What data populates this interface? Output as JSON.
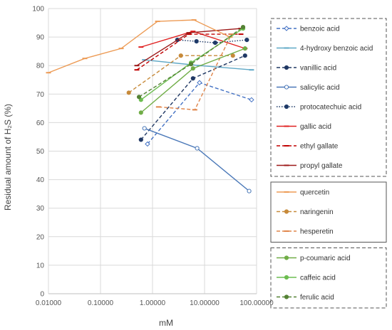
{
  "chart_data": {
    "type": "line",
    "title": "",
    "xlabel": "mM",
    "ylabel": "Residual amount of H₂S  (%)",
    "x_scale": "log",
    "xlim": [
      0.01,
      100
    ],
    "ylim": [
      0,
      100
    ],
    "x_ticks": [
      "0.01000",
      "0.10000",
      "1.00000",
      "10.00000",
      "100.00000"
    ],
    "y_ticks": [
      "0",
      "10",
      "20",
      "30",
      "40",
      "50",
      "60",
      "70",
      "80",
      "90",
      "100"
    ],
    "grid": true,
    "legend_position": "right",
    "legend_groups": [
      {
        "border": "dashed",
        "series": [
          "benzoic acid",
          "4-hydroxy benzoic acid",
          "vanillic acid",
          "salicylic acid",
          "protocatechuic acid",
          "gallic acid",
          "ethyl gallate",
          "propyl gallate"
        ]
      },
      {
        "border": "solid",
        "series": [
          "quercetin",
          "naringenin",
          "hesperetin"
        ]
      },
      {
        "border": "dashed",
        "series": [
          "p-coumaric acid",
          "caffeic acid",
          "ferulic acid"
        ]
      }
    ],
    "series": [
      {
        "name": "benzoic acid",
        "color": "#4472c4",
        "dash": "5,3",
        "marker": "diamond-open",
        "points": [
          [
            0.8,
            52.5
          ],
          [
            8.0,
            74
          ],
          [
            80.0,
            68
          ]
        ]
      },
      {
        "name": "4-hydroxy benzoic acid",
        "color": "#5fa8c6",
        "dash": "",
        "marker": "dash",
        "points": [
          [
            0.7,
            82
          ],
          [
            8.0,
            80
          ],
          [
            80.0,
            78.5
          ]
        ]
      },
      {
        "name": "vanillic acid",
        "color": "#203864",
        "dash": "5,3",
        "marker": "circle",
        "points": [
          [
            0.6,
            54
          ],
          [
            6.0,
            75.5
          ],
          [
            60.0,
            83.5
          ]
        ]
      },
      {
        "name": "salicylic acid",
        "color": "#4a78b8",
        "dash": "",
        "marker": "circle-open",
        "points": [
          [
            0.7,
            58
          ],
          [
            7.2,
            51
          ],
          [
            72.0,
            36
          ]
        ]
      },
      {
        "name": "protocatechuic acid",
        "color": "#1f3a68",
        "dash": "1.5,2",
        "marker": "circle",
        "points": [
          [
            3.0,
            89
          ],
          [
            7.0,
            88.5
          ],
          [
            16.0,
            88
          ],
          [
            65.0,
            89
          ]
        ]
      },
      {
        "name": "gallic acid",
        "color": "#e02020",
        "dash": "",
        "marker": "dash",
        "points": [
          [
            0.6,
            86.5
          ],
          [
            6.0,
            92
          ],
          [
            60.0,
            86
          ]
        ]
      },
      {
        "name": "ethyl gallate",
        "color": "#c00000",
        "dash": "5,3",
        "marker": "dash",
        "points": [
          [
            0.5,
            78.5
          ],
          [
            5.0,
            91
          ],
          [
            50.0,
            91
          ]
        ]
      },
      {
        "name": "propyl gallate",
        "color": "#9c1818",
        "dash": "",
        "marker": "dash",
        "points": [
          [
            0.5,
            80
          ],
          [
            5.0,
            91.5
          ],
          [
            50.0,
            93
          ]
        ]
      },
      {
        "name": "quercetin",
        "color": "#ed9b55",
        "dash": "",
        "marker": "dash",
        "points": [
          [
            0.01,
            77.5
          ],
          [
            0.05,
            82.5
          ],
          [
            0.25,
            86
          ],
          [
            1.25,
            95.5
          ],
          [
            6.25,
            96
          ],
          [
            31.0,
            90
          ]
        ]
      },
      {
        "name": "naringenin",
        "color": "#c78a3a",
        "dash": "5,3",
        "marker": "circle",
        "points": [
          [
            0.35,
            70.5
          ],
          [
            3.5,
            83.5
          ],
          [
            35.0,
            83.5
          ]
        ]
      },
      {
        "name": "hesperetin",
        "color": "#e0854a",
        "dash": "5,3",
        "marker": "dash",
        "points": [
          [
            1.3,
            65.5
          ],
          [
            6.5,
            64.5
          ],
          [
            33.0,
            91
          ]
        ]
      },
      {
        "name": "p-coumaric acid",
        "color": "#70ad47",
        "dash": "",
        "marker": "circle",
        "points": [
          [
            0.6,
            63.5
          ],
          [
            6.0,
            79
          ],
          [
            60.0,
            86
          ]
        ]
      },
      {
        "name": "caffeic acid",
        "color": "#6cbd50",
        "dash": "",
        "marker": "circle",
        "points": [
          [
            0.6,
            68
          ],
          [
            5.5,
            81
          ],
          [
            55.0,
            93
          ]
        ]
      },
      {
        "name": "ferulic acid",
        "color": "#548235",
        "dash": "5,3",
        "marker": "circle",
        "points": [
          [
            0.55,
            69
          ],
          [
            5.5,
            80.5
          ],
          [
            55.0,
            93.5
          ]
        ]
      }
    ]
  }
}
